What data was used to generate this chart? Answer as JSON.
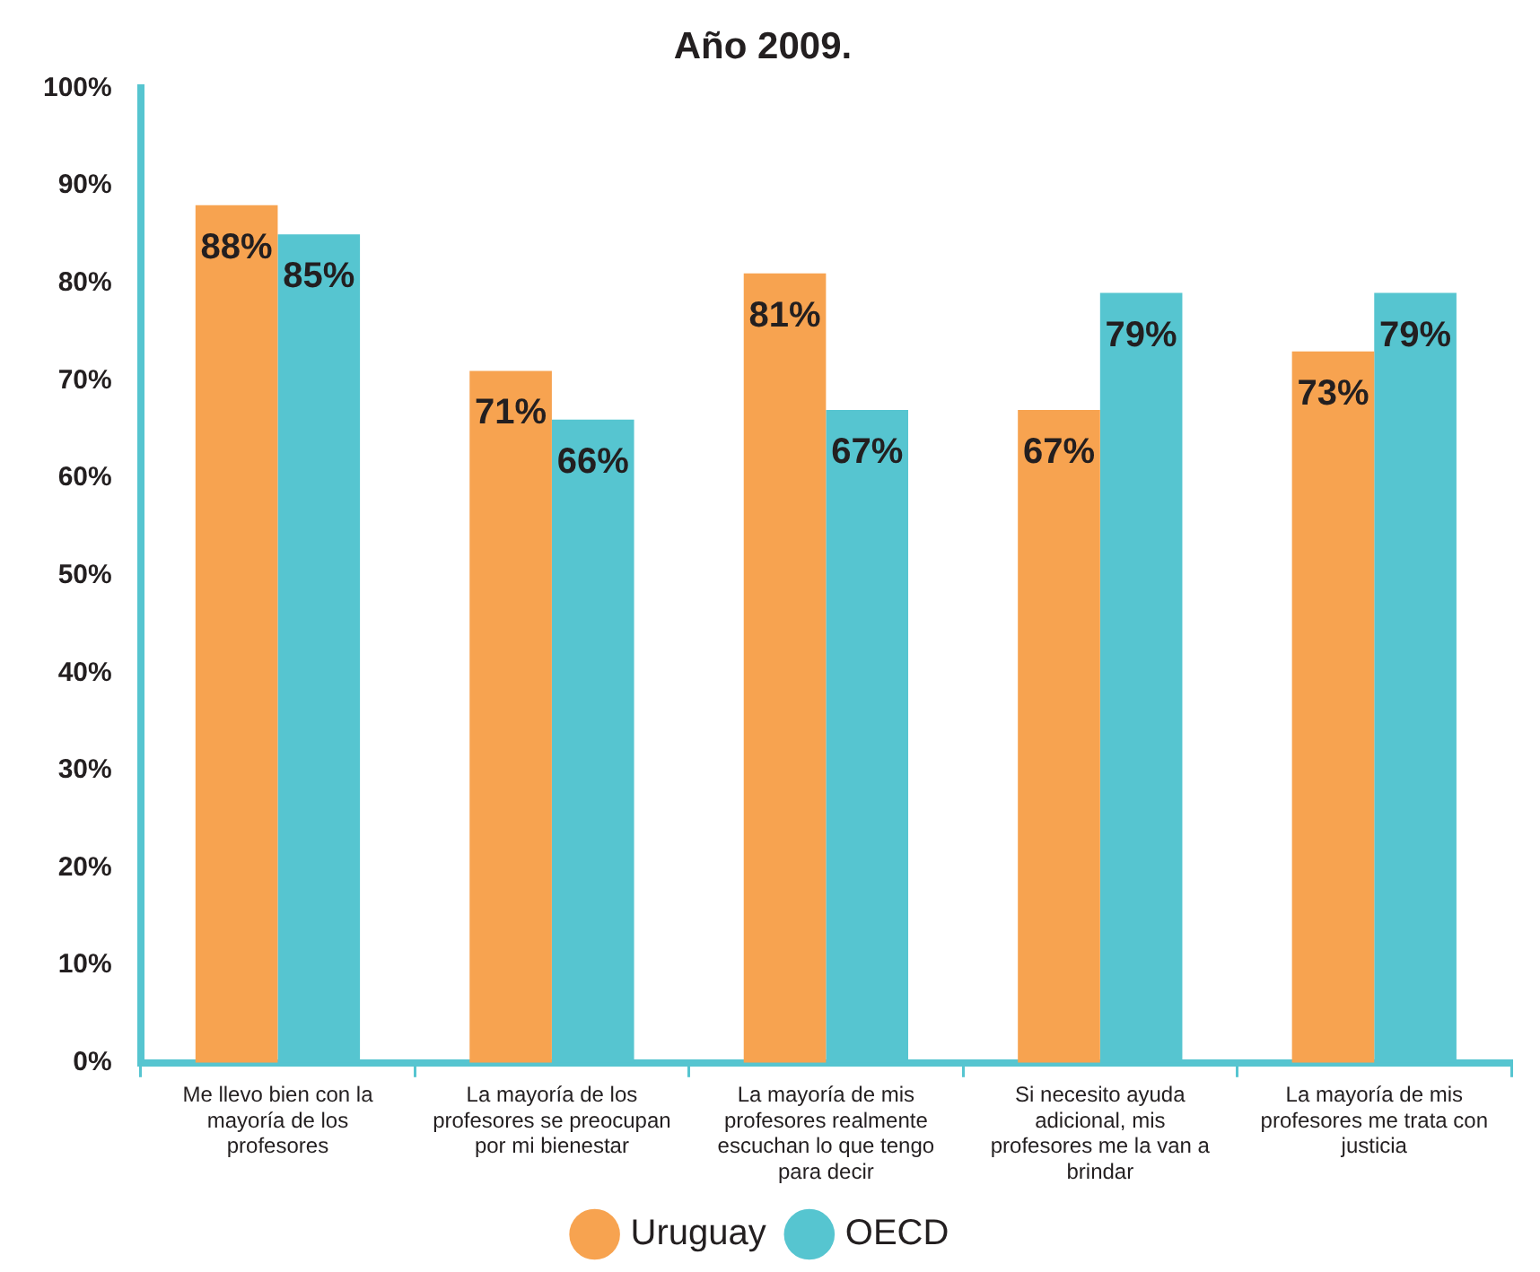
{
  "chart_data": {
    "type": "bar",
    "title": "Año 2009.",
    "categories": [
      "Me llevo bien con la mayoría de los profesores",
      "La mayoría de los profesores se preocupan por mi bienestar",
      "La mayoría de mis profesores realmente escuchan lo que tengo para decir",
      "Si necesito ayuda adicional, mis profesores me la van a brindar",
      "La mayoría de mis profesores me trata con justicia"
    ],
    "series": [
      {
        "name": "Uruguay",
        "color": "#f7a350",
        "values": [
          88,
          71,
          81,
          67,
          73
        ],
        "value_labels": [
          "88%",
          "71%",
          "81%",
          "67%",
          "73%"
        ]
      },
      {
        "name": "OECD",
        "color": "#56c5d0",
        "values": [
          85,
          66,
          67,
          79,
          79
        ],
        "value_labels": [
          "85%",
          "66%",
          "67%",
          "79%",
          "79%"
        ]
      }
    ],
    "ylim": [
      0,
      100
    ],
    "yticks": [
      {
        "value": 0,
        "label": "0%"
      },
      {
        "value": 10,
        "label": "10%"
      },
      {
        "value": 20,
        "label": "20%"
      },
      {
        "value": 30,
        "label": "30%"
      },
      {
        "value": 40,
        "label": "40%"
      },
      {
        "value": 50,
        "label": "50%"
      },
      {
        "value": 60,
        "label": "60%"
      },
      {
        "value": 70,
        "label": "70%"
      },
      {
        "value": 80,
        "label": "80%"
      },
      {
        "value": 90,
        "label": "90%"
      },
      {
        "value": 100,
        "label": "100%"
      }
    ],
    "grid": false,
    "legend": "bottom"
  }
}
